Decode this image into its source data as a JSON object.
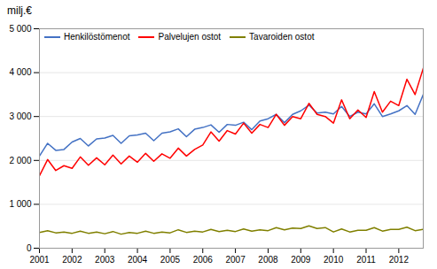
{
  "chart_data": {
    "type": "line",
    "title": "milj.€",
    "x": [
      2001,
      2001.25,
      2001.5,
      2001.75,
      2002,
      2002.25,
      2002.5,
      2002.75,
      2003,
      2003.25,
      2003.5,
      2003.75,
      2004,
      2004.25,
      2004.5,
      2004.75,
      2005,
      2005.25,
      2005.5,
      2005.75,
      2006,
      2006.25,
      2006.5,
      2006.75,
      2007,
      2007.25,
      2007.5,
      2007.75,
      2008,
      2008.25,
      2008.5,
      2008.75,
      2009,
      2009.25,
      2009.5,
      2009.75,
      2010,
      2010.25,
      2010.5,
      2010.75,
      2011,
      2011.25,
      2011.5,
      2011.75,
      2012,
      2012.25,
      2012.5,
      2012.75
    ],
    "series": [
      {
        "name": "Henkilöstömenot",
        "color": "#4472C4",
        "values": [
          2100,
          2390,
          2230,
          2250,
          2420,
          2500,
          2330,
          2490,
          2510,
          2570,
          2390,
          2560,
          2580,
          2620,
          2450,
          2620,
          2650,
          2720,
          2540,
          2710,
          2750,
          2810,
          2640,
          2820,
          2800,
          2870,
          2700,
          2900,
          2950,
          3050,
          2860,
          3050,
          3130,
          3260,
          3080,
          3100,
          3060,
          3230,
          3000,
          3100,
          3060,
          3290,
          3000,
          3060,
          3130,
          3250,
          3050,
          3500
        ]
      },
      {
        "name": "Palvelujen ostot",
        "color": "#FF0000",
        "values": [
          1650,
          2020,
          1770,
          1880,
          1820,
          2080,
          1890,
          2060,
          1900,
          2120,
          1920,
          2100,
          1960,
          2160,
          1980,
          2150,
          2050,
          2280,
          2100,
          2250,
          2350,
          2650,
          2440,
          2680,
          2600,
          2850,
          2620,
          2820,
          2750,
          3050,
          2800,
          3000,
          2950,
          3300,
          3050,
          3000,
          2850,
          3380,
          2950,
          3150,
          2980,
          3570,
          3100,
          3350,
          3250,
          3850,
          3500,
          4100
        ]
      },
      {
        "name": "Tavaroiden ostot",
        "color": "#808000",
        "values": [
          360,
          400,
          350,
          370,
          340,
          390,
          340,
          370,
          330,
          380,
          320,
          360,
          340,
          390,
          340,
          370,
          350,
          420,
          360,
          390,
          370,
          430,
          380,
          410,
          380,
          440,
          390,
          420,
          400,
          470,
          420,
          460,
          450,
          510,
          450,
          470,
          370,
          440,
          370,
          410,
          410,
          470,
          390,
          430,
          430,
          480,
          400,
          430
        ]
      }
    ],
    "xlim": [
      2001.0,
      2012.75
    ],
    "xticks": [
      2001,
      2002,
      2003,
      2004,
      2005,
      2006,
      2007,
      2008,
      2009,
      2010,
      2011,
      2012
    ],
    "ylim": [
      0,
      5000
    ],
    "yticks": [
      0,
      {
        "value": 1000,
        "label": "1 000"
      },
      {
        "value": 2000,
        "label": "2 000"
      },
      {
        "value": 3000,
        "label": "3 000"
      },
      {
        "value": 4000,
        "label": "4 000"
      },
      {
        "value": 5000,
        "label": "5 000"
      }
    ],
    "grid": true,
    "legend": "upper left"
  }
}
